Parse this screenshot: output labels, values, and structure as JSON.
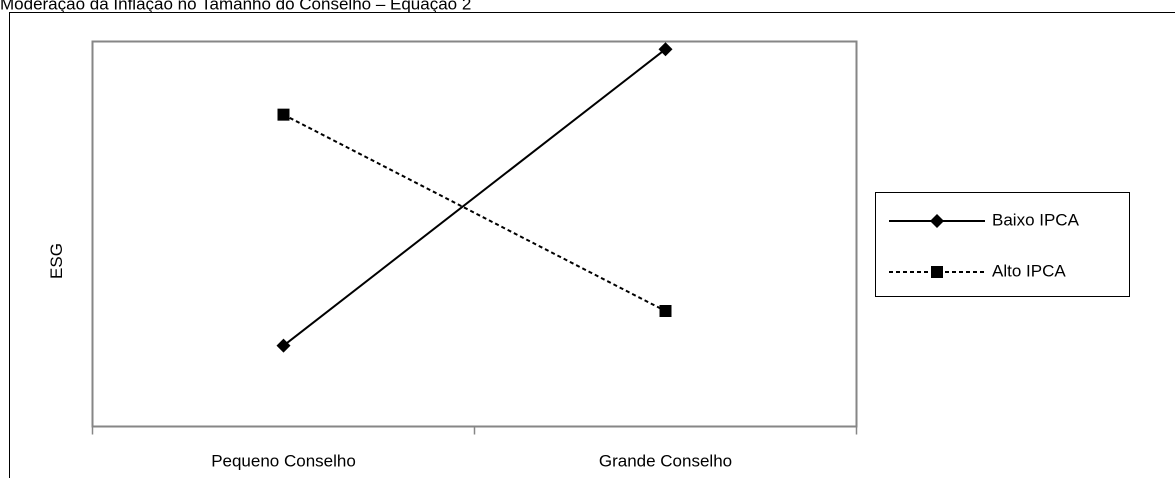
{
  "chart_data": {
    "type": "line",
    "title": "Moderação da Inflação no Tamanho do Conselho – Equação 2",
    "xlabel": "",
    "ylabel": "ESG",
    "categories": [
      "Pequeno Conselho",
      "Grande Conselho"
    ],
    "ylim": [
      0,
      1
    ],
    "grid": false,
    "legend_position": "right",
    "series": [
      {
        "name": "Baixo IPCA",
        "values": [
          0.21,
          0.98
        ],
        "line_style": "solid",
        "marker": "diamond",
        "color": "#000000"
      },
      {
        "name": "Alto IPCA",
        "values": [
          0.81,
          0.3
        ],
        "line_style": "dashed",
        "marker": "square",
        "color": "#000000"
      }
    ]
  }
}
